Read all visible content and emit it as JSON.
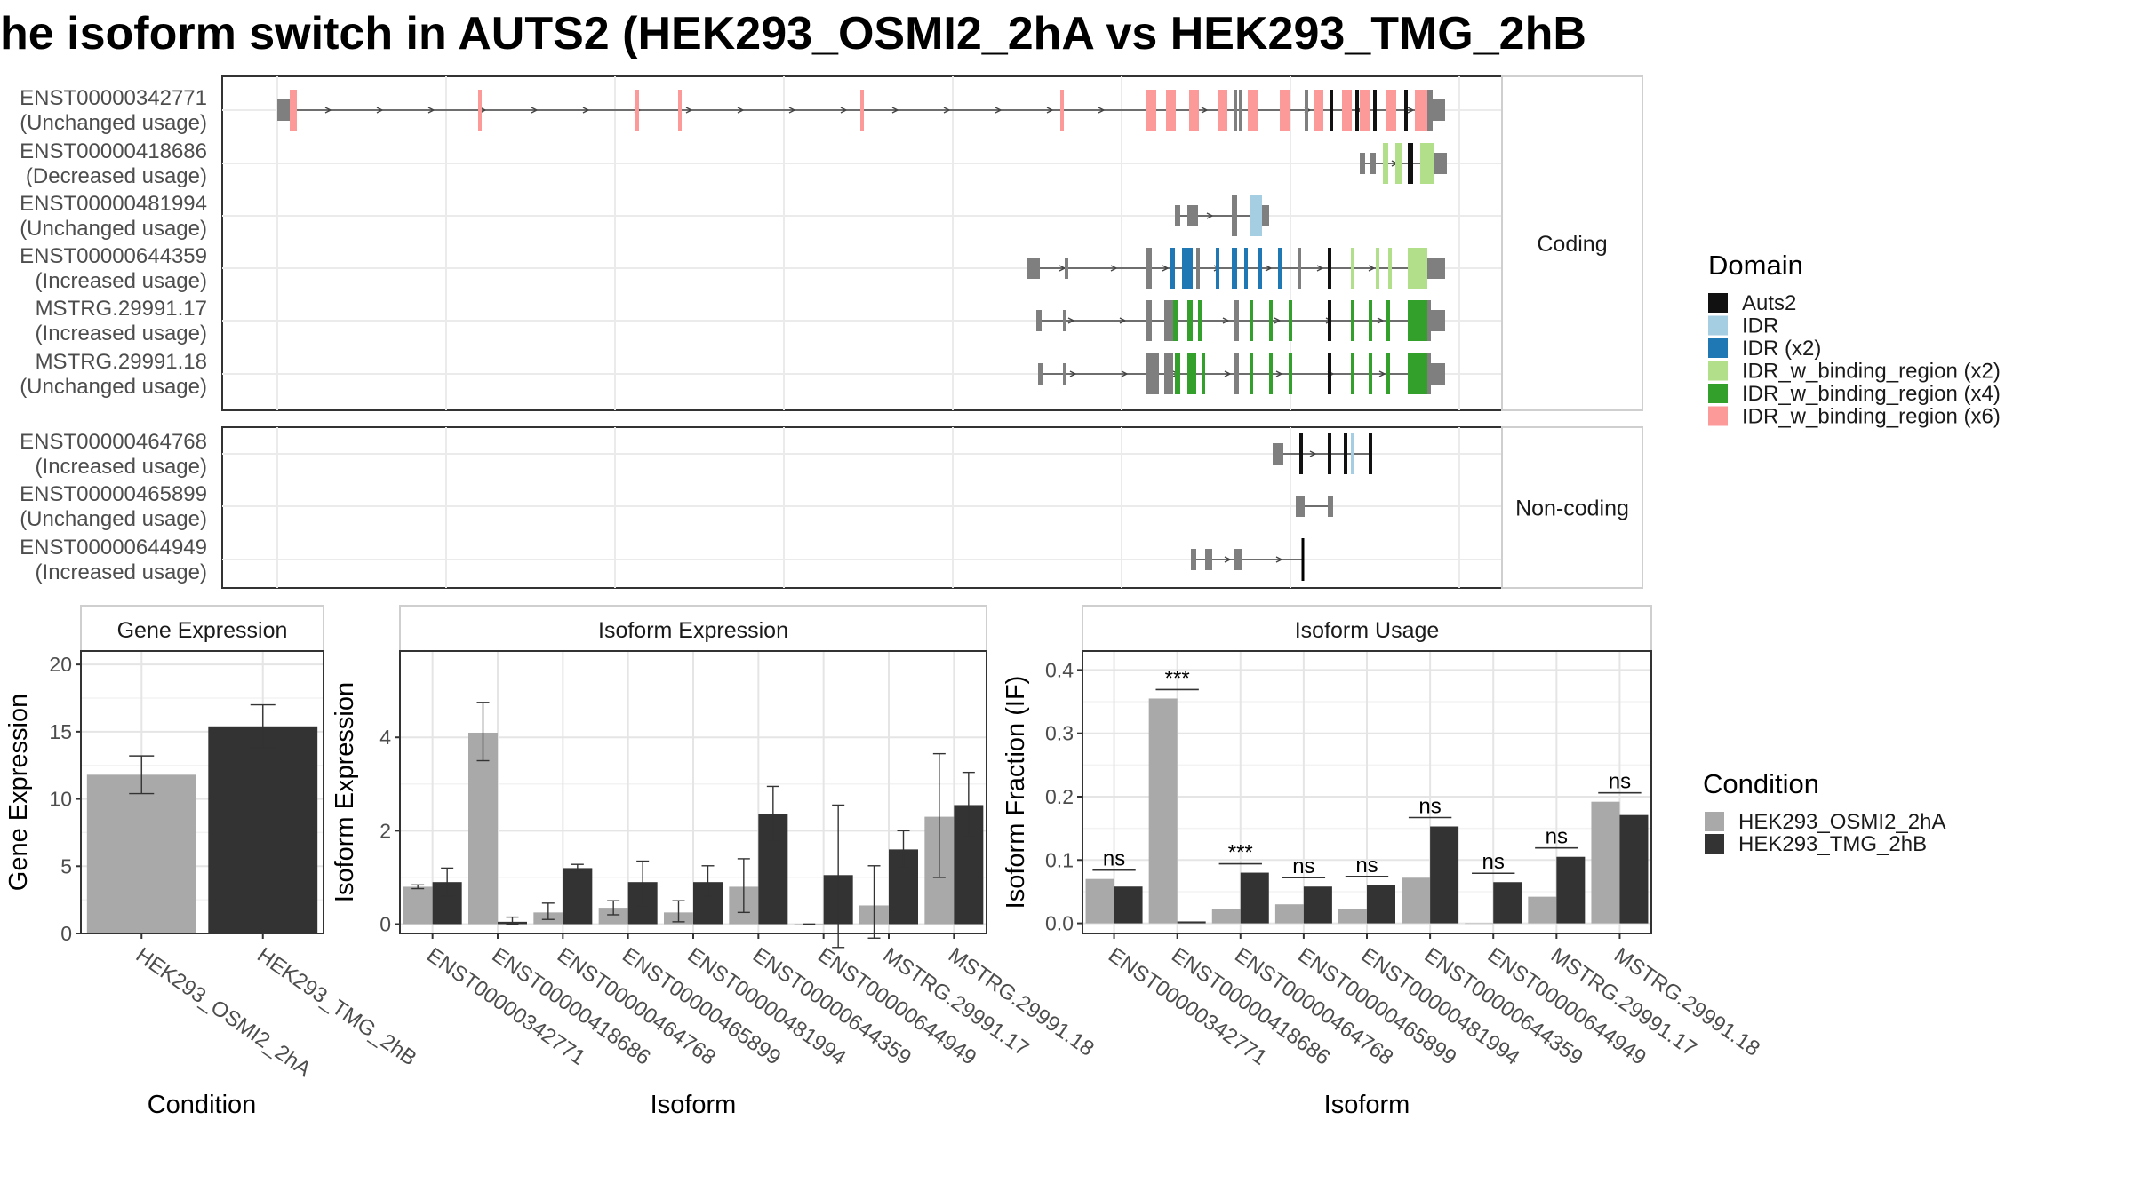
{
  "title": "he isoform switch in AUTS2 (HEK293_OSMI2_2hA vs HEK293_TMG_2hB",
  "colors": {
    "domain_auts2": "#111111",
    "domain_idr": "#a6cee3",
    "domain_idr_x2": "#1f78b4",
    "domain_idr_binding_x2": "#b2df8a",
    "domain_idr_binding_x4": "#33a02c",
    "domain_idr_binding_x6": "#fb9a99",
    "utr": "#7f7f7f",
    "cond_a": "#a9a9a9",
    "cond_b": "#333333"
  },
  "structure": {
    "coding_label": "Coding",
    "noncoding_label": "Non-coding",
    "coding_isoforms": [
      {
        "id": "ENST00000342771",
        "usage": "(Unchanged usage)"
      },
      {
        "id": "ENST00000418686",
        "usage": "(Decreased usage)"
      },
      {
        "id": "ENST00000481994",
        "usage": "(Unchanged usage)"
      },
      {
        "id": "ENST00000644359",
        "usage": "(Increased usage)"
      },
      {
        "id": "MSTRG.29991.17",
        "usage": "(Increased usage)"
      },
      {
        "id": "MSTRG.29991.18",
        "usage": "(Unchanged usage)"
      }
    ],
    "noncoding_isoforms": [
      {
        "id": "ENST00000464768",
        "usage": "(Increased usage)"
      },
      {
        "id": "ENST00000465899",
        "usage": "(Unchanged usage)"
      },
      {
        "id": "ENST00000644949",
        "usage": "(Increased usage)"
      }
    ]
  },
  "legends": {
    "domain_title": "Domain",
    "domain_items": [
      {
        "label": "Auts2",
        "color": "#111111"
      },
      {
        "label": "IDR",
        "color": "#a6cee3"
      },
      {
        "label": "IDR (x2)",
        "color": "#1f78b4"
      },
      {
        "label": "IDR_w_binding_region (x2)",
        "color": "#b2df8a"
      },
      {
        "label": "IDR_w_binding_region (x4)",
        "color": "#33a02c"
      },
      {
        "label": "IDR_w_binding_region (x6)",
        "color": "#fb9a99"
      }
    ],
    "condition_title": "Condition",
    "condition_items": [
      {
        "label": "HEK293_OSMI2_2hA",
        "color": "#a9a9a9"
      },
      {
        "label": "HEK293_TMG_2hB",
        "color": "#333333"
      }
    ]
  },
  "chart_data": [
    {
      "type": "bar",
      "title": "Gene Expression",
      "xlabel": "Condition",
      "ylabel": "Gene Expression",
      "categories": [
        "HEK293_OSMI2_2hA",
        "HEK293_TMG_2hB"
      ],
      "values": [
        11.8,
        15.4
      ],
      "errors": [
        [
          10.4,
          13.2
        ],
        [
          13.8,
          17.0
        ]
      ],
      "ylim": [
        0,
        21
      ],
      "yticks": [
        0,
        5,
        10,
        15,
        20
      ]
    },
    {
      "type": "bar",
      "title": "Isoform Expression",
      "xlabel": "Isoform",
      "ylabel": "Isoform Expression",
      "categories": [
        "ENST00000342771",
        "ENST00000418686",
        "ENST00000464768",
        "ENST00000465899",
        "ENST00000481994",
        "ENST00000644359",
        "ENST00000644949",
        "MSTRG.29991.17",
        "MSTRG.29991.18"
      ],
      "series": [
        {
          "name": "HEK293_OSMI2_2hA",
          "values": [
            0.8,
            4.1,
            0.25,
            0.35,
            0.25,
            0.8,
            0.0,
            0.4,
            2.3
          ],
          "errors": [
            [
              0.76,
              0.84
            ],
            [
              3.5,
              4.75
            ],
            [
              0.1,
              0.45
            ],
            [
              0.2,
              0.5
            ],
            [
              0.05,
              0.5
            ],
            [
              0.25,
              1.4
            ],
            [
              0.0,
              0.0
            ],
            [
              -0.3,
              1.25
            ],
            [
              1.0,
              3.65
            ]
          ]
        },
        {
          "name": "HEK293_TMG_2hB",
          "values": [
            0.9,
            0.05,
            1.2,
            0.9,
            0.9,
            2.35,
            1.05,
            1.6,
            2.55
          ],
          "errors": [
            [
              0.6,
              1.2
            ],
            [
              0.0,
              0.15
            ],
            [
              1.15,
              1.28
            ],
            [
              0.4,
              1.35
            ],
            [
              0.6,
              1.25
            ],
            [
              1.8,
              2.95
            ],
            [
              -0.5,
              2.55
            ],
            [
              1.2,
              2.0
            ],
            [
              1.9,
              3.25
            ]
          ]
        }
      ],
      "ylim": [
        -0.2,
        5.85
      ],
      "yticks": [
        0,
        2,
        4
      ]
    },
    {
      "type": "bar",
      "title": "Isoform Usage",
      "xlabel": "Isoform",
      "ylabel": "Isoform Fraction (IF)",
      "categories": [
        "ENST00000342771",
        "ENST00000418686",
        "ENST00000464768",
        "ENST00000465899",
        "ENST00000481994",
        "ENST00000644359",
        "ENST00000644949",
        "MSTRG.29991.17",
        "MSTRG.29991.18"
      ],
      "series": [
        {
          "name": "HEK293_OSMI2_2hA",
          "values": [
            0.07,
            0.355,
            0.022,
            0.03,
            0.022,
            0.072,
            0.0,
            0.042,
            0.192
          ]
        },
        {
          "name": "HEK293_TMG_2hB",
          "values": [
            0.058,
            0.003,
            0.08,
            0.058,
            0.06,
            0.153,
            0.065,
            0.105,
            0.171
          ]
        }
      ],
      "significance": [
        "ns",
        "***",
        "***",
        "ns",
        "ns",
        "ns",
        "ns",
        "ns",
        "ns"
      ],
      "ylim": [
        -0.016,
        0.43
      ],
      "yticks": [
        0.0,
        0.1,
        0.2,
        0.3,
        0.4
      ],
      "ytick_labels": [
        "0.0",
        "0.1",
        "0.2",
        "0.3",
        "0.4"
      ]
    }
  ]
}
